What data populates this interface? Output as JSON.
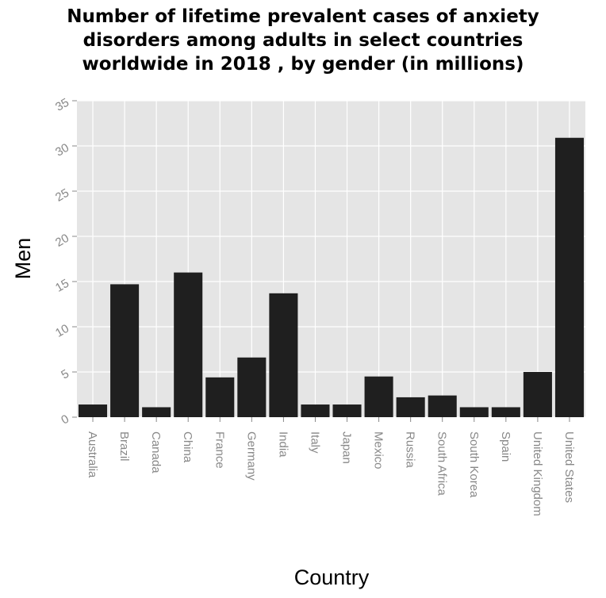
{
  "chart_data": {
    "type": "bar",
    "title_lines": [
      "Number of lifetime prevalent cases of anxiety",
      "disorders among adults in select countries",
      "worldwide in 2018 , by gender (in millions)"
    ],
    "xlabel": "Country",
    "ylabel": "Men",
    "ylim": [
      0,
      35
    ],
    "yticks": [
      0,
      5,
      10,
      15,
      20,
      25,
      30,
      35
    ],
    "grid": true,
    "categories": [
      "Australia",
      "Brazil",
      "Canada",
      "China",
      "France",
      "Germany",
      "India",
      "Italy",
      "Japan",
      "Mexico",
      "Russia",
      "South Africa",
      "South Korea",
      "Spain",
      "United Kingdom",
      "United States"
    ],
    "values": [
      1.4,
      14.7,
      1.1,
      16.0,
      4.4,
      6.6,
      13.7,
      1.4,
      1.4,
      4.5,
      2.2,
      2.4,
      1.1,
      1.1,
      5.0,
      30.9
    ],
    "colors": {
      "bar": "#1f1f1f",
      "plot_background": "#e5e5e5",
      "grid": "#ffffff",
      "tick_label": "#888888",
      "axis_label": "#000000"
    }
  }
}
